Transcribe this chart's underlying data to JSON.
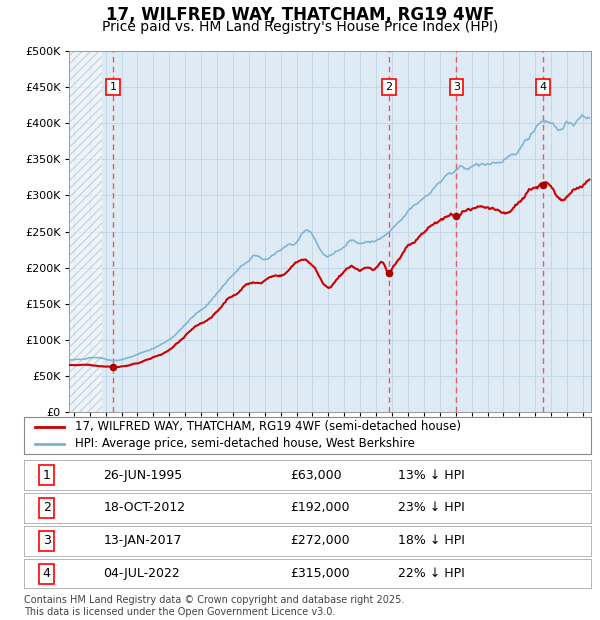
{
  "title": "17, WILFRED WAY, THATCHAM, RG19 4WF",
  "subtitle": "Price paid vs. HM Land Registry's House Price Index (HPI)",
  "legend_property": "17, WILFRED WAY, THATCHAM, RG19 4WF (semi-detached house)",
  "legend_hpi": "HPI: Average price, semi-detached house, West Berkshire",
  "footer": "Contains HM Land Registry data © Crown copyright and database right 2025.\nThis data is licensed under the Open Government Licence v3.0.",
  "ylim": [
    0,
    500000
  ],
  "yticks": [
    0,
    50000,
    100000,
    150000,
    200000,
    250000,
    300000,
    350000,
    400000,
    450000,
    500000
  ],
  "xlim_start": 1992.7,
  "xlim_end": 2025.5,
  "transactions": [
    {
      "label": "1",
      "date": "26-JUN-1995",
      "year": 1995.48,
      "price": 63000,
      "pct": "13% ↓ HPI"
    },
    {
      "label": "2",
      "date": "18-OCT-2012",
      "year": 2012.79,
      "price": 192000,
      "pct": "23% ↓ HPI"
    },
    {
      "label": "3",
      "date": "13-JAN-2017",
      "year": 2017.04,
      "price": 272000,
      "pct": "18% ↓ HPI"
    },
    {
      "label": "4",
      "date": "04-JUL-2022",
      "year": 2022.5,
      "price": 315000,
      "pct": "22% ↓ HPI"
    }
  ],
  "hpi_color": "#7ab3d4",
  "price_color": "#cc0000",
  "dot_color": "#aa0000",
  "vline_color": "#e06060",
  "grid_color": "#c5d8ea",
  "bg_color": "#deeaf4",
  "title_fontsize": 12,
  "subtitle_fontsize": 10,
  "legend_fontsize": 8.5,
  "table_fontsize": 9,
  "footer_fontsize": 7,
  "hpi_anchors_x": [
    1992.7,
    1993.5,
    1994.5,
    1995.5,
    1996.5,
    1997.5,
    1998.5,
    1999.5,
    2000.5,
    2001.5,
    2002.5,
    2003.5,
    2004.0,
    2004.5,
    2005.0,
    2005.5,
    2006.5,
    2007.0,
    2007.5,
    2008.0,
    2008.5,
    2009.0,
    2009.5,
    2010.0,
    2010.5,
    2011.0,
    2011.5,
    2012.0,
    2012.5,
    2012.79,
    2013.0,
    2013.5,
    2014.0,
    2014.5,
    2015.0,
    2015.5,
    2016.0,
    2016.5,
    2017.0,
    2017.5,
    2018.0,
    2018.5,
    2019.0,
    2019.5,
    2020.0,
    2020.5,
    2021.0,
    2021.5,
    2022.0,
    2022.5,
    2023.0,
    2023.5,
    2024.0,
    2024.5,
    2025.0,
    2025.4
  ],
  "hpi_anchors_y": [
    72000,
    74000,
    76000,
    72000,
    76000,
    84000,
    94000,
    110000,
    132000,
    152000,
    178000,
    200000,
    210000,
    215000,
    212000,
    218000,
    228000,
    235000,
    252000,
    245000,
    225000,
    215000,
    222000,
    232000,
    238000,
    233000,
    236000,
    237000,
    243000,
    248000,
    252000,
    263000,
    277000,
    288000,
    298000,
    308000,
    318000,
    328000,
    332000,
    338000,
    340000,
    342000,
    344000,
    346000,
    345000,
    352000,
    365000,
    380000,
    395000,
    405000,
    400000,
    393000,
    396000,
    403000,
    407000,
    410000
  ],
  "price_anchors_x": [
    1992.7,
    1993.5,
    1994.5,
    1995.48,
    1996.5,
    1997.5,
    1998.5,
    1999.5,
    2000.5,
    2001.5,
    2002.5,
    2003.5,
    2004.0,
    2004.5,
    2005.0,
    2005.5,
    2006.5,
    2007.0,
    2007.5,
    2008.0,
    2008.5,
    2009.0,
    2009.5,
    2010.0,
    2010.5,
    2011.0,
    2011.5,
    2012.0,
    2012.5,
    2012.79,
    2013.0,
    2013.5,
    2014.0,
    2014.5,
    2015.0,
    2015.5,
    2016.0,
    2016.5,
    2017.04,
    2017.5,
    2018.0,
    2018.5,
    2019.0,
    2019.5,
    2020.0,
    2020.5,
    2021.0,
    2021.5,
    2022.0,
    2022.5,
    2023.0,
    2023.5,
    2024.0,
    2024.5,
    2025.0,
    2025.4
  ],
  "price_anchors_y": [
    65000,
    66000,
    65000,
    63000,
    65000,
    72000,
    80000,
    95000,
    115000,
    130000,
    152000,
    170000,
    180000,
    178000,
    182000,
    188000,
    196000,
    208000,
    212000,
    203000,
    185000,
    175000,
    182000,
    193000,
    200000,
    197000,
    199000,
    200000,
    205000,
    192000,
    198000,
    212000,
    228000,
    240000,
    248000,
    258000,
    265000,
    270000,
    272000,
    275000,
    277000,
    280000,
    282000,
    278000,
    274000,
    280000,
    292000,
    305000,
    312000,
    315000,
    308000,
    296000,
    303000,
    308000,
    316000,
    320000
  ]
}
